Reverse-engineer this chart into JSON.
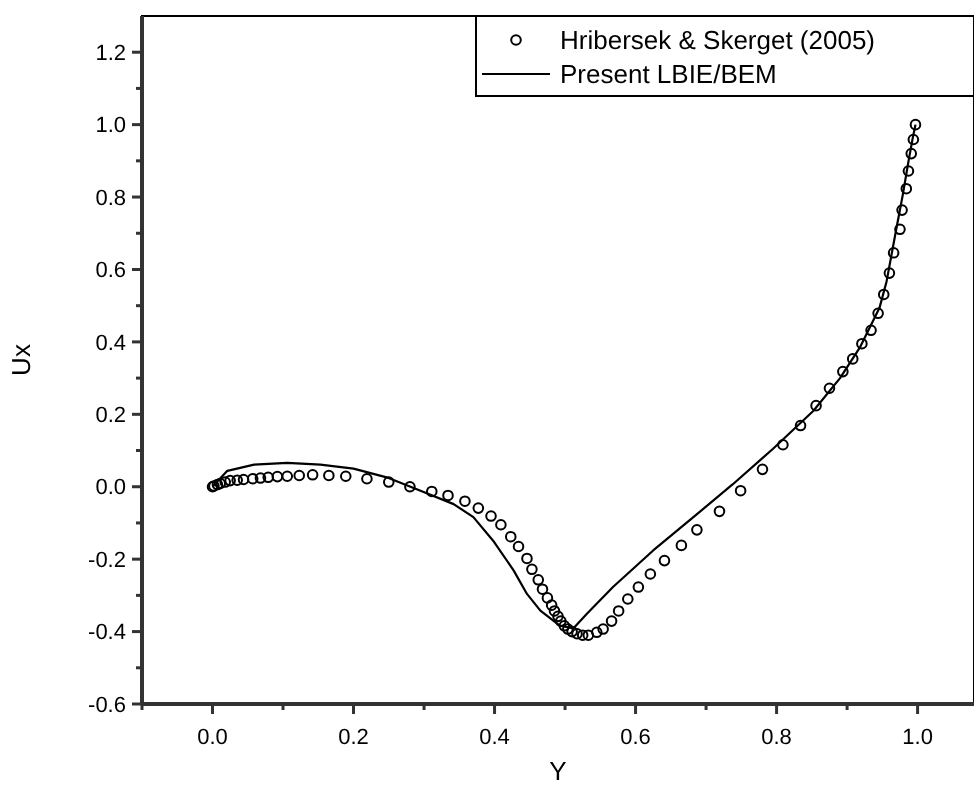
{
  "chart_data": {
    "type": "scatter",
    "xlabel": "Y",
    "ylabel": "Ux",
    "xlim": [
      -0.1,
      1.08
    ],
    "ylim": [
      -0.6,
      1.3
    ],
    "xticks": [
      {
        "value": -0.1,
        "label": null
      },
      {
        "value": 0,
        "label": "0.0"
      },
      {
        "value": 0.1,
        "label": null
      },
      {
        "value": 0.2,
        "label": "0.2"
      },
      {
        "value": 0.3,
        "label": null
      },
      {
        "value": 0.4,
        "label": "0.4"
      },
      {
        "value": 0.5,
        "label": null
      },
      {
        "value": 0.6,
        "label": "0.6"
      },
      {
        "value": 0.7,
        "label": null
      },
      {
        "value": 0.8,
        "label": "0.8"
      },
      {
        "value": 0.9,
        "label": null
      },
      {
        "value": 1,
        "label": "1.0"
      }
    ],
    "yticks": [
      {
        "value": -0.6,
        "label": "-0.6"
      },
      {
        "value": -0.5,
        "label": null
      },
      {
        "value": -0.4,
        "label": "-0.4"
      },
      {
        "value": -0.3,
        "label": null
      },
      {
        "value": -0.2,
        "label": "-0.2"
      },
      {
        "value": -0.1,
        "label": null
      },
      {
        "value": 0,
        "label": "0.0"
      },
      {
        "value": 0.1,
        "label": null
      },
      {
        "value": 0.2,
        "label": "0.2"
      },
      {
        "value": 0.3,
        "label": null
      },
      {
        "value": 0.4,
        "label": "0.4"
      },
      {
        "value": 0.5,
        "label": null
      },
      {
        "value": 0.6,
        "label": "0.6"
      },
      {
        "value": 0.7,
        "label": null
      },
      {
        "value": 0.8,
        "label": "0.8"
      },
      {
        "value": 0.9,
        "label": null
      },
      {
        "value": 1,
        "label": "1.0"
      },
      {
        "value": 1.1,
        "label": null
      },
      {
        "value": 1.2,
        "label": "1.2"
      }
    ],
    "grid": false,
    "legend": "top right",
    "series": [
      {
        "name": "Hribersek & Skerget (2005)",
        "marker": "circle",
        "color": "#000000",
        "x": [
          0.0,
          0.002,
          0.007,
          0.011,
          0.018,
          0.025,
          0.035,
          0.044,
          0.057,
          0.068,
          0.079,
          0.092,
          0.106,
          0.123,
          0.142,
          0.165,
          0.189,
          0.219,
          0.25,
          0.28,
          0.311,
          0.334,
          0.358,
          0.377,
          0.395,
          0.409,
          0.423,
          0.434,
          0.446,
          0.453,
          0.462,
          0.468,
          0.475,
          0.481,
          0.485,
          0.49,
          0.494,
          0.499,
          0.504,
          0.51,
          0.517,
          0.525,
          0.533,
          0.545,
          0.554,
          0.566,
          0.576,
          0.589,
          0.604,
          0.621,
          0.641,
          0.665,
          0.687,
          0.719,
          0.749,
          0.78,
          0.809,
          0.834,
          0.856,
          0.875,
          0.894,
          0.908,
          0.921,
          0.934,
          0.944,
          0.952,
          0.96,
          0.966,
          0.975,
          0.978,
          0.984,
          0.987,
          0.991,
          0.994,
          0.997
        ],
        "values": [
          0.0,
          0.002,
          0.006,
          0.009,
          0.013,
          0.017,
          0.018,
          0.02,
          0.022,
          0.024,
          0.026,
          0.028,
          0.029,
          0.031,
          0.033,
          0.031,
          0.029,
          0.022,
          0.013,
          0.0,
          -0.013,
          -0.024,
          -0.04,
          -0.059,
          -0.081,
          -0.105,
          -0.138,
          -0.165,
          -0.198,
          -0.228,
          -0.257,
          -0.283,
          -0.307,
          -0.327,
          -0.343,
          -0.358,
          -0.371,
          -0.384,
          -0.393,
          -0.4,
          -0.406,
          -0.41,
          -0.41,
          -0.402,
          -0.393,
          -0.371,
          -0.343,
          -0.31,
          -0.277,
          -0.241,
          -0.204,
          -0.162,
          -0.119,
          -0.068,
          -0.011,
          0.048,
          0.116,
          0.169,
          0.224,
          0.272,
          0.318,
          0.353,
          0.395,
          0.432,
          0.479,
          0.531,
          0.59,
          0.646,
          0.711,
          0.764,
          0.823,
          0.872,
          0.92,
          0.959,
          1.0
        ]
      },
      {
        "name": "Present LBIE/BEM",
        "type": "line",
        "marker": "none",
        "line_style": "solid",
        "color": "#000000",
        "x": [
          0.0,
          0.021,
          0.059,
          0.106,
          0.153,
          0.2,
          0.247,
          0.295,
          0.342,
          0.37,
          0.398,
          0.427,
          0.446,
          0.465,
          0.493,
          0.512,
          0.531,
          0.568,
          0.625,
          0.682,
          0.738,
          0.795,
          0.852,
          0.89,
          0.918,
          0.946,
          0.956,
          0.97,
          0.979,
          0.987,
          0.993,
          0.997
        ],
        "values": [
          0.0,
          0.044,
          0.061,
          0.066,
          0.061,
          0.05,
          0.026,
          -0.011,
          -0.048,
          -0.084,
          -0.149,
          -0.231,
          -0.296,
          -0.342,
          -0.384,
          -0.391,
          -0.351,
          -0.277,
          -0.176,
          -0.084,
          0.007,
          0.105,
          0.209,
          0.3,
          0.384,
          0.494,
          0.567,
          0.714,
          0.806,
          0.898,
          0.962,
          1.0
        ]
      }
    ]
  }
}
